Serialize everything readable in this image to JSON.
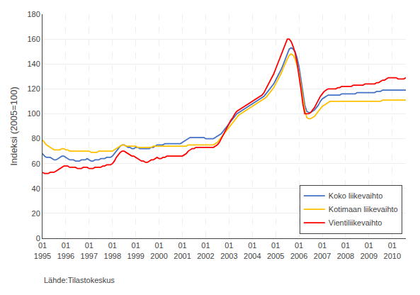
{
  "chart_data": {
    "type": "line",
    "ylabel": "Indeksi (2005=100)",
    "annotations": [
      {
        "text": "Lähde:Tilastokeskus"
      }
    ],
    "categories": [
      "01\n1995",
      null,
      null,
      null,
      null,
      null,
      null,
      null,
      null,
      null,
      null,
      null,
      "01\n1996",
      null,
      null,
      null,
      null,
      null,
      null,
      null,
      null,
      null,
      null,
      null,
      "01\n1997",
      null,
      null,
      null,
      null,
      null,
      null,
      null,
      null,
      null,
      null,
      null,
      "01\n1998",
      null,
      null,
      null,
      null,
      null,
      null,
      null,
      null,
      null,
      null,
      null,
      "01\n1999",
      null,
      null,
      null,
      null,
      null,
      null,
      null,
      null,
      null,
      null,
      null,
      "01\n2000",
      null,
      null,
      null,
      null,
      null,
      null,
      null,
      null,
      null,
      null,
      null,
      "01\n2001",
      null,
      null,
      null,
      null,
      null,
      null,
      null,
      null,
      null,
      null,
      null,
      "01\n2002",
      null,
      null,
      null,
      null,
      null,
      null,
      null,
      null,
      null,
      null,
      null,
      "01\n2003",
      null,
      null,
      null,
      null,
      null,
      null,
      null,
      null,
      null,
      null,
      null,
      "01\n2004",
      null,
      null,
      null,
      null,
      null,
      null,
      null,
      null,
      null,
      null,
      null,
      "01\n2005",
      null,
      null,
      null,
      null,
      null,
      null,
      null,
      null,
      null,
      null,
      null,
      "01\n2006",
      null,
      null,
      null,
      null,
      null,
      null,
      null,
      null,
      null,
      null,
      null,
      "01\n2007",
      null,
      null,
      null,
      null,
      null,
      null,
      null,
      null,
      null,
      null,
      null,
      "01\n2008",
      null,
      null,
      null,
      null,
      null,
      null,
      null,
      null,
      null,
      null,
      null,
      "01\n2009",
      null,
      null,
      null,
      null,
      null,
      null,
      null,
      null,
      null,
      null,
      null,
      "01\n2010",
      null,
      null,
      null,
      null,
      null,
      null,
      null
    ],
    "series": [
      {
        "name": "Koko liikevaihto",
        "color": "#4472C4",
        "values": [
          68,
          66,
          65,
          65,
          65,
          64,
          63,
          63,
          64,
          65,
          66,
          66,
          65,
          64,
          63,
          63,
          63,
          62,
          62,
          62,
          63,
          63,
          63,
          64,
          63,
          62,
          62,
          63,
          63,
          63,
          64,
          64,
          64,
          65,
          65,
          65,
          66,
          68,
          70,
          72,
          74,
          75,
          75,
          74,
          73,
          73,
          72,
          72,
          73,
          73,
          72,
          72,
          72,
          72,
          72,
          72,
          73,
          73,
          74,
          75,
          75,
          75,
          75,
          76,
          76,
          76,
          76,
          76,
          76,
          76,
          76,
          76,
          77,
          78,
          79,
          80,
          81,
          81,
          81,
          81,
          81,
          81,
          81,
          81,
          80,
          80,
          80,
          80,
          80,
          81,
          82,
          83,
          84,
          86,
          88,
          90,
          92,
          94,
          96,
          98,
          100,
          101,
          102,
          103,
          104,
          105,
          106,
          107,
          108,
          109,
          110,
          111,
          112,
          113,
          114,
          116,
          118,
          120,
          122,
          124,
          127,
          130,
          133,
          136,
          140,
          144,
          148,
          152,
          153,
          152,
          150,
          145,
          138,
          128,
          117,
          107,
          102,
          101,
          101,
          102,
          103,
          105,
          107,
          110,
          112,
          113,
          114,
          115,
          115,
          115,
          115,
          115,
          115,
          115,
          116,
          116,
          116,
          116,
          116,
          116,
          116,
          116,
          117,
          117,
          117,
          117,
          117,
          117,
          117,
          117,
          117,
          117,
          118,
          118,
          118,
          119,
          119,
          119,
          119,
          119,
          119,
          119,
          119,
          119,
          119,
          119,
          119,
          119
        ]
      },
      {
        "name": "Kotimaan liikevaihto",
        "color": "#FFC000",
        "values": [
          79,
          77,
          75,
          74,
          73,
          72,
          71,
          71,
          71,
          71,
          72,
          72,
          71,
          71,
          70,
          70,
          70,
          70,
          70,
          70,
          70,
          70,
          70,
          70,
          70,
          69,
          69,
          69,
          69,
          70,
          70,
          70,
          70,
          70,
          70,
          70,
          70,
          71,
          72,
          73,
          74,
          75,
          75,
          74,
          74,
          74,
          74,
          74,
          74,
          73,
          73,
          73,
          73,
          73,
          73,
          73,
          73,
          74,
          74,
          74,
          74,
          74,
          74,
          74,
          74,
          74,
          74,
          74,
          74,
          74,
          74,
          74,
          74,
          74,
          74,
          75,
          75,
          75,
          75,
          75,
          75,
          75,
          75,
          75,
          75,
          75,
          75,
          75,
          75,
          76,
          77,
          79,
          81,
          83,
          85,
          87,
          89,
          91,
          93,
          95,
          97,
          99,
          100,
          101,
          102,
          103,
          104,
          105,
          106,
          107,
          108,
          109,
          110,
          111,
          112,
          113,
          115,
          117,
          119,
          121,
          124,
          127,
          130,
          133,
          137,
          141,
          144,
          147,
          148,
          147,
          144,
          139,
          133,
          123,
          113,
          103,
          97,
          96,
          96,
          97,
          98,
          100,
          102,
          104,
          106,
          107,
          108,
          109,
          110,
          110,
          110,
          110,
          110,
          110,
          110,
          110,
          110,
          110,
          110,
          110,
          110,
          110,
          110,
          110,
          110,
          110,
          110,
          110,
          110,
          110,
          110,
          110,
          110,
          110,
          110,
          111,
          111,
          111,
          111,
          111,
          111,
          111,
          111,
          111,
          111,
          111,
          111,
          111
        ]
      },
      {
        "name": "Vientiliikevaihto",
        "color": "#FF0000",
        "values": [
          53,
          52,
          52,
          52,
          53,
          53,
          53,
          54,
          55,
          56,
          57,
          58,
          58,
          58,
          57,
          57,
          57,
          57,
          56,
          56,
          56,
          57,
          57,
          57,
          56,
          56,
          56,
          57,
          57,
          57,
          57,
          58,
          58,
          59,
          59,
          59,
          60,
          62,
          65,
          67,
          69,
          70,
          70,
          69,
          68,
          67,
          66,
          66,
          65,
          64,
          63,
          62,
          62,
          61,
          61,
          62,
          63,
          63,
          64,
          65,
          64,
          64,
          65,
          65,
          66,
          66,
          66,
          66,
          66,
          66,
          66,
          66,
          66,
          67,
          68,
          70,
          71,
          72,
          72,
          73,
          73,
          73,
          73,
          73,
          73,
          73,
          73,
          73,
          73,
          74,
          75,
          77,
          80,
          83,
          86,
          89,
          92,
          95,
          97,
          100,
          102,
          103,
          104,
          105,
          106,
          107,
          108,
          109,
          110,
          111,
          112,
          113,
          114,
          115,
          117,
          120,
          123,
          126,
          129,
          132,
          136,
          140,
          144,
          148,
          153,
          157,
          160,
          160,
          158,
          154,
          149,
          141,
          131,
          120,
          108,
          100,
          100,
          100,
          101,
          103,
          105,
          108,
          111,
          114,
          116,
          118,
          119,
          120,
          120,
          120,
          120,
          120,
          121,
          121,
          122,
          122,
          122,
          122,
          122,
          122,
          123,
          123,
          123,
          123,
          123,
          123,
          124,
          124,
          124,
          124,
          124,
          124,
          125,
          125,
          126,
          127,
          127,
          128,
          129,
          129,
          129,
          129,
          129,
          128,
          128,
          128,
          128,
          129
        ]
      }
    ],
    "ylim": [
      0,
      180
    ],
    "yticks": [
      0,
      20,
      40,
      60,
      80,
      100,
      120,
      140,
      160,
      180
    ],
    "grid": true,
    "legend": "lower right"
  }
}
